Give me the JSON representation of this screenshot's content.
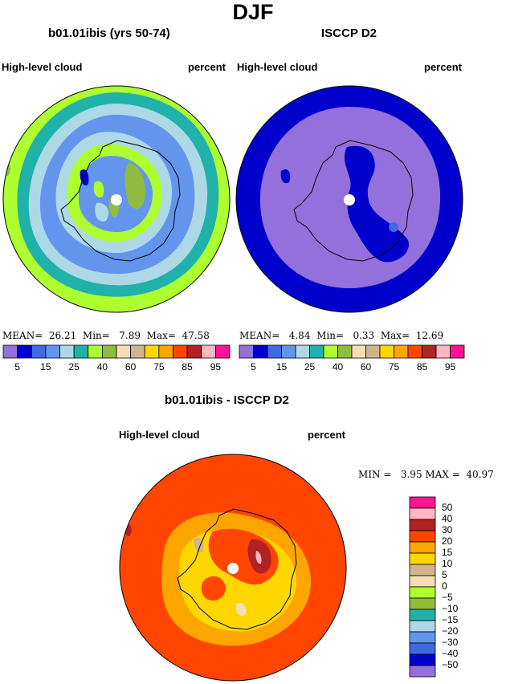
{
  "figure": {
    "title": "DJF"
  },
  "panels": {
    "model": {
      "title": "b01.01ibis (yrs 50-74)",
      "field_label": "High-level cloud",
      "units_label": "percent",
      "stats": {
        "mean_label": "MEAN=",
        "mean": "26.21",
        "min_label": "Min=",
        "min": "7.89",
        "max_label": "Max=",
        "max": "47.58"
      }
    },
    "obs": {
      "title": "ISCCP D2",
      "field_label": "High-level cloud",
      "units_label": "percent",
      "stats": {
        "mean_label": "MEAN=",
        "mean": "4.84",
        "min_label": "Min=",
        "min": "0.33",
        "max_label": "Max=",
        "max": "12.69"
      }
    },
    "diff": {
      "title": "b01.01ibis - ISCCP D2",
      "field_label": "High-level cloud",
      "units_label": "percent",
      "stats": {
        "min_label": "MIN =",
        "min": "3.95",
        "max_label": "MAX =",
        "max": "40.97"
      }
    }
  },
  "colorbars": {
    "horizontal": {
      "colors": [
        "#9370db",
        "#0000cd",
        "#4169e1",
        "#6495ed",
        "#add8e6",
        "#20b2aa",
        "#adff2f",
        "#8fbc3f",
        "#f5deb3",
        "#d2b48c",
        "#ffd700",
        "#ffa500",
        "#ff4500",
        "#b22222",
        "#ffb6c1",
        "#ff1493"
      ],
      "tick_labels": [
        "5",
        "15",
        "25",
        "40",
        "60",
        "75",
        "85",
        "95"
      ]
    },
    "vertical": {
      "colors_top_to_bottom": [
        "#ff1493",
        "#ffb6c1",
        "#b22222",
        "#ff4500",
        "#ffa500",
        "#ffd700",
        "#d2b48c",
        "#f5deb3",
        "#adff2f",
        "#8fbc3f",
        "#20b2aa",
        "#add8e6",
        "#6495ed",
        "#4169e1",
        "#0000cd",
        "#9370db"
      ],
      "tick_labels_top_to_bottom": [
        "50",
        "40",
        "30",
        "20",
        "15",
        "10",
        "5",
        "0",
        "−5",
        "−10",
        "−15",
        "−20",
        "−30",
        "−40",
        "−50"
      ]
    }
  },
  "map": {
    "projection": "south-polar-stereographic",
    "field": "High-level cloud",
    "season": "DJF",
    "pole_marker": "white-dot"
  }
}
